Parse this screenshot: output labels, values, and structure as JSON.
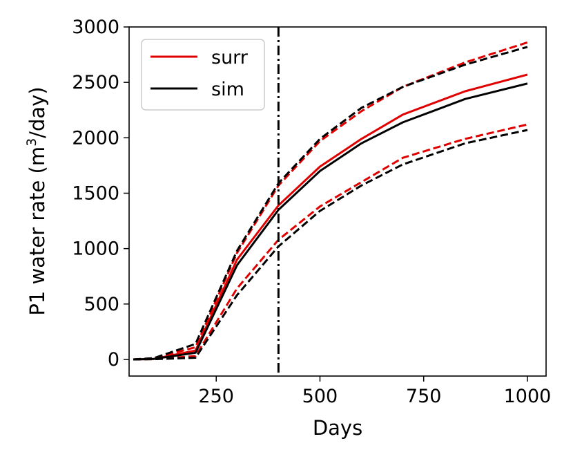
{
  "chart_data": {
    "type": "line",
    "title": "",
    "xlabel": "Days",
    "ylabel": "P1 water rate (m³/day)",
    "ylabel_parts": {
      "before": "P1 water rate (m",
      "sup": "3",
      "after": "/day)"
    },
    "xlim": [
      40,
      1045
    ],
    "ylim": [
      -150,
      3000
    ],
    "xticks": [
      250,
      500,
      750,
      1000
    ],
    "yticks": [
      0,
      500,
      1000,
      1500,
      2000,
      2500,
      3000
    ],
    "x": [
      50,
      100,
      200,
      300,
      400,
      500,
      600,
      700,
      850,
      1000
    ],
    "vline": {
      "x": 400,
      "style": "dashdot",
      "color": "#000000"
    },
    "legend": {
      "position": "top-left",
      "entries": [
        "surr",
        "sim"
      ]
    },
    "series": [
      {
        "name": "surr",
        "role": "mean",
        "color": "#e00000",
        "dash": "solid",
        "values": [
          0,
          5,
          80,
          900,
          1390,
          1740,
          1990,
          2210,
          2420,
          2570
        ]
      },
      {
        "name": "surr-upper",
        "role": "band",
        "color": "#e00000",
        "dash": "dashed",
        "values": [
          0,
          10,
          110,
          960,
          1570,
          1970,
          2240,
          2460,
          2680,
          2860
        ]
      },
      {
        "name": "surr-lower",
        "role": "band",
        "color": "#e00000",
        "dash": "dashed",
        "values": [
          0,
          2,
          30,
          640,
          1080,
          1380,
          1600,
          1820,
          1990,
          2120
        ]
      },
      {
        "name": "sim",
        "role": "mean",
        "color": "#000000",
        "dash": "solid",
        "values": [
          0,
          5,
          60,
          850,
          1350,
          1700,
          1950,
          2140,
          2350,
          2490
        ]
      },
      {
        "name": "sim-upper",
        "role": "band",
        "color": "#000000",
        "dash": "dashed",
        "values": [
          0,
          12,
          140,
          980,
          1590,
          1990,
          2270,
          2460,
          2660,
          2820
        ]
      },
      {
        "name": "sim-lower",
        "role": "band",
        "color": "#000000",
        "dash": "dashed",
        "values": [
          0,
          2,
          15,
          580,
          1020,
          1340,
          1570,
          1760,
          1950,
          2070
        ]
      }
    ]
  }
}
